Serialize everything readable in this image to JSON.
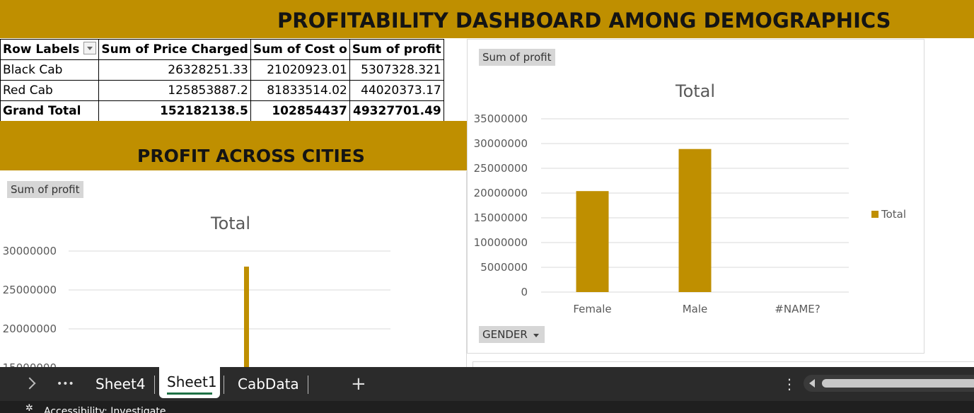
{
  "dashboard": {
    "title": "PROFITABILITY DASHBOARD AMONG DEMOGRAPHICS",
    "cities_title": "PROFIT ACROSS CITIES",
    "accent_color": "#bf8f00"
  },
  "pivot": {
    "headers": [
      "Row Labels",
      "Sum of Price Charged",
      "Sum of Cost o",
      "Sum of profit"
    ],
    "rows": [
      {
        "label": "Black Cab",
        "price": "26328251.33",
        "cost": "21020923.01",
        "profit": "5307328.321"
      },
      {
        "label": "Red Cab",
        "price": "125853887.2",
        "cost": "81833514.02",
        "profit": "44020373.17"
      }
    ],
    "total": {
      "label": "Grand Total",
      "price": "152182138.5",
      "cost": "102854437",
      "profit": "49327701.49"
    }
  },
  "chart_data": [
    {
      "type": "bar",
      "field_button": "Sum of profit",
      "title": "Total",
      "categories": [
        "Female",
        "Male",
        "#NAME?"
      ],
      "series": [
        {
          "name": "Total",
          "values": [
            20400000,
            28900000,
            0
          ],
          "color": "#bf8f00"
        }
      ],
      "ylim": [
        0,
        35000000
      ],
      "yticks": [
        "0",
        "5000000",
        "10000000",
        "15000000",
        "20000000",
        "25000000",
        "30000000",
        "35000000"
      ],
      "legend": "right",
      "grid": true,
      "axis_field_button": "GENDER"
    },
    {
      "type": "bar",
      "field_button": "Sum of profit",
      "title": "Total",
      "yticks_visible": [
        "15000000",
        "20000000",
        "25000000",
        "30000000"
      ],
      "ylim_visible": [
        15000000,
        30000000
      ],
      "series": [
        {
          "name": "Total",
          "values": [
            28000000
          ],
          "color": "#bf8f00"
        }
      ],
      "grid": true
    }
  ],
  "tabs": {
    "more": "•••",
    "items": [
      "Sheet4",
      "Sheet1",
      "CabData"
    ],
    "active": "Sheet1",
    "add": "+",
    "options": "⋮"
  },
  "status": {
    "accessibility": "Accessibility: Investigate"
  },
  "icons": [
    "chevron-right-icon",
    "more-icon",
    "plus-icon",
    "vertical-ellipsis-icon",
    "scroll-left-icon",
    "accessibility-icon"
  ]
}
